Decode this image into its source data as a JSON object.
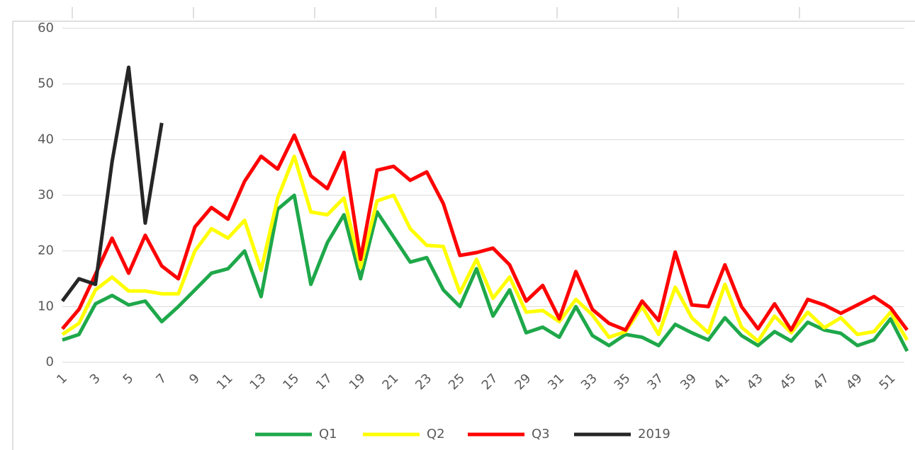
{
  "chart_data": {
    "type": "line",
    "categories": [
      "1",
      null,
      "3",
      null,
      "5",
      null,
      "7",
      null,
      "9",
      null,
      "11",
      null,
      "13",
      null,
      "15",
      null,
      "17",
      null,
      "19",
      null,
      "21",
      null,
      "23",
      null,
      "25",
      null,
      "27",
      null,
      "29",
      null,
      "31",
      null,
      "33",
      null,
      "35",
      null,
      "37",
      null,
      "39",
      null,
      "41",
      null,
      "43",
      null,
      "45",
      null,
      "47",
      null,
      "49",
      null,
      "51",
      null
    ],
    "series": [
      {
        "name": "Q1",
        "color": "#1ea84a",
        "values": [
          4,
          5,
          10.5,
          12,
          10.3,
          11,
          7.3,
          10,
          13,
          16,
          16.8,
          20,
          11.8,
          27.5,
          30,
          14,
          21.5,
          26.5,
          15,
          27,
          22.5,
          18,
          18.8,
          13,
          10,
          16.8,
          8.3,
          13,
          5.3,
          6.3,
          4.5,
          10,
          4.8,
          3,
          5,
          4.5,
          3,
          6.8,
          5.3,
          4,
          8,
          4.8,
          3,
          5.5,
          3.8,
          7.2,
          5.8,
          5.2,
          3,
          4,
          7.8,
          2
        ]
      },
      {
        "name": "Q2",
        "color": "#ffff00",
        "values": [
          5,
          7,
          13,
          15.3,
          12.8,
          12.8,
          12.3,
          12.3,
          20,
          24,
          22.3,
          25.5,
          16.5,
          29.5,
          37,
          27,
          26.5,
          29.5,
          17,
          29,
          30,
          24,
          21,
          20.8,
          12.5,
          18.5,
          11.5,
          15.3,
          9,
          9.3,
          7.3,
          11.3,
          8.5,
          4.5,
          5.5,
          10,
          5,
          13.5,
          8,
          5.3,
          14,
          6.3,
          3.8,
          8.3,
          5.3,
          9,
          6.2,
          8,
          5,
          5.5,
          9,
          4
        ]
      },
      {
        "name": "Q3",
        "color": "#ff0000",
        "values": [
          6,
          9.5,
          15.8,
          22.3,
          16,
          22.8,
          17.3,
          15,
          24.3,
          27.8,
          25.7,
          32.5,
          37,
          34.7,
          40.8,
          33.5,
          31.2,
          37.7,
          18.5,
          34.5,
          35.2,
          32.7,
          34.2,
          28.5,
          19.2,
          19.7,
          20.5,
          17.5,
          11,
          13.8,
          7.8,
          16.3,
          9.5,
          7,
          5.8,
          11,
          7.5,
          19.8,
          10.3,
          10,
          17.5,
          10,
          6,
          10.5,
          5.8,
          11.3,
          10.3,
          8.8,
          10.3,
          11.8,
          9.8,
          5.8
        ]
      },
      {
        "name": "2019",
        "color": "#262626",
        "values": [
          11,
          15,
          14,
          36,
          53,
          25,
          43,
          null,
          null,
          null,
          null,
          null,
          null,
          null,
          null,
          null,
          null,
          null,
          null,
          null,
          null,
          null,
          null,
          null,
          null,
          null,
          null,
          null,
          null,
          null,
          null,
          null,
          null,
          null,
          null,
          null,
          null,
          null,
          null,
          null,
          null,
          null,
          null,
          null,
          null,
          null,
          null,
          null,
          null,
          null,
          null,
          null
        ]
      }
    ],
    "ylim": [
      0,
      60
    ],
    "yticks": [
      0,
      10,
      20,
      30,
      40,
      50,
      60
    ],
    "grid": true,
    "legend": "bottom"
  }
}
